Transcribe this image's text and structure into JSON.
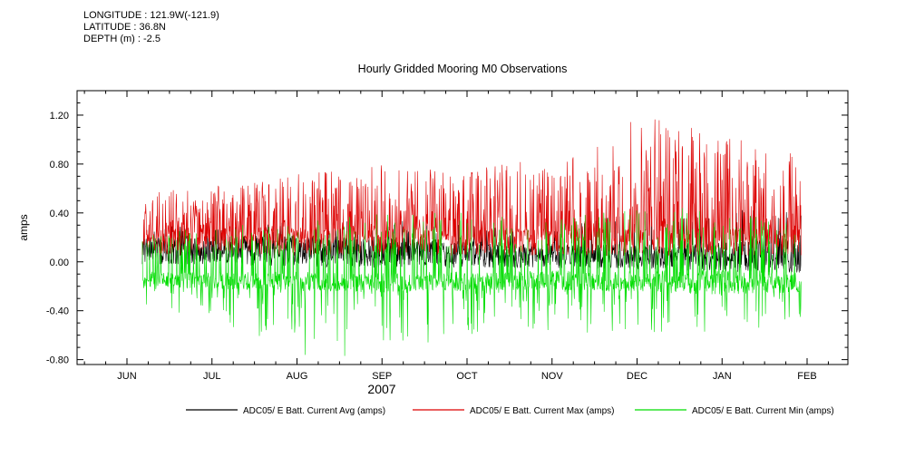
{
  "header": {
    "longitude": "LONGITUDE : 121.9W(-121.9)",
    "latitude": "LATITUDE : 36.8N",
    "depth": "DEPTH (m) : -2.5"
  },
  "chart_data": {
    "type": "line",
    "title": "Hourly Gridded Mooring M0 Observations",
    "ylabel": "amps",
    "xlabel": "",
    "year_label": "2007",
    "x_months": [
      "JUN",
      "JUL",
      "AUG",
      "SEP",
      "OCT",
      "NOV",
      "DEC",
      "JAN",
      "FEB"
    ],
    "yticks": [
      -0.8,
      -0.4,
      0.0,
      0.4,
      0.8,
      1.2
    ],
    "ylim": [
      -0.84,
      1.4
    ],
    "grid": false,
    "legend_position": "bottom",
    "x_start": 0.18,
    "x_end": 7.93,
    "points": 1700,
    "seed": 20070601,
    "series": [
      {
        "name": "ADC05/ E Batt. Current Avg (amps)",
        "color": "#000000",
        "kind": "avg",
        "base": [
          0.1,
          0.1,
          0.09,
          0.08,
          0.06,
          0.05,
          0.04,
          0.04,
          0.08
        ],
        "amp": [
          0.12,
          0.12,
          0.13,
          0.13,
          0.11,
          0.1,
          0.1,
          0.12,
          0.18
        ],
        "spike": [
          0.28,
          0.3,
          0.33,
          0.35,
          0.3,
          0.3,
          0.4,
          0.42,
          0.46
        ],
        "spike_prob": 0.05
      },
      {
        "name": "ADC05/ E Batt. Current Max (amps)",
        "color": "#dd0000",
        "kind": "max",
        "base": [
          0.15,
          0.15,
          0.16,
          0.16,
          0.16,
          0.15,
          0.16,
          0.16,
          0.16
        ],
        "amp": [
          0.1,
          0.1,
          0.11,
          0.11,
          0.11,
          0.11,
          0.11,
          0.11,
          0.11
        ],
        "spike": [
          0.55,
          0.62,
          0.72,
          0.8,
          0.76,
          0.85,
          1.2,
          1.05,
          0.85
        ],
        "spike_prob": 0.42
      },
      {
        "name": "ADC05/ E Batt. Current Min (amps)",
        "color": "#00dd00",
        "kind": "min",
        "base": [
          -0.14,
          -0.15,
          -0.16,
          -0.17,
          -0.16,
          -0.15,
          -0.16,
          -0.17,
          -0.16
        ],
        "amp": [
          0.06,
          0.07,
          0.08,
          0.08,
          0.08,
          0.08,
          0.09,
          0.1,
          0.09
        ],
        "spike": [
          -0.35,
          -0.46,
          -0.8,
          -0.76,
          -0.62,
          -0.56,
          -0.62,
          -0.58,
          -0.52
        ],
        "spike_up": [
          0.22,
          0.28,
          0.35,
          0.4,
          0.4,
          0.36,
          0.45,
          0.45,
          0.3
        ],
        "spike_prob": 0.2,
        "spike_up_prob": 0.13
      }
    ]
  }
}
